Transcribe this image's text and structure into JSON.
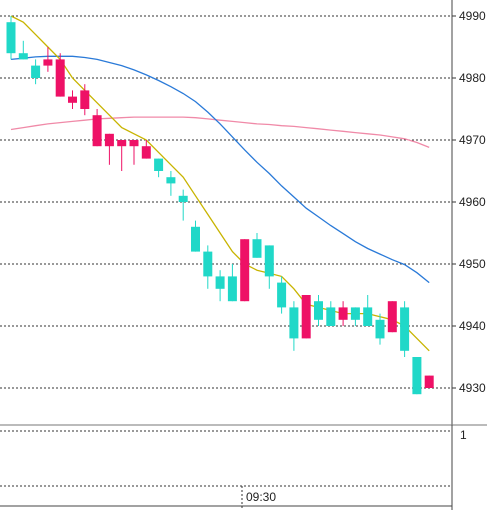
{
  "chart_data": {
    "type": "candlestick",
    "title": "",
    "xlabel": "",
    "ylabel": "",
    "ylim": [
      4925,
      4992
    ],
    "y_ticks": [
      4930,
      4940,
      4950,
      4960,
      4970,
      4980,
      4990
    ],
    "y_tick_labels": [
      "4930",
      "4940",
      "4950",
      "4960",
      "4970",
      "4980",
      "4990"
    ],
    "x_tick_labels": [
      "09:30"
    ],
    "sub_panel": {
      "y_tick_labels": [
        "1"
      ]
    },
    "grid": "horizontal dotted",
    "colors": {
      "up": "#20d8c8",
      "down": "#ee1166",
      "ma_short": "#c8b400",
      "ma_mid": "#2a7ad8",
      "ma_long": "#f08aa8"
    },
    "candles": [
      {
        "o": 4984,
        "h": 4990,
        "l": 4983,
        "c": 4989
      },
      {
        "o": 4983,
        "h": 4986,
        "l": 4983,
        "c": 4984
      },
      {
        "o": 4980,
        "h": 4983,
        "l": 4979,
        "c": 4982
      },
      {
        "o": 4983,
        "h": 4985,
        "l": 4981,
        "c": 4982
      },
      {
        "o": 4983,
        "h": 4984,
        "l": 4977,
        "c": 4977
      },
      {
        "o": 4977,
        "h": 4978,
        "l": 4975,
        "c": 4976
      },
      {
        "o": 4978,
        "h": 4979,
        "l": 4974,
        "c": 4975
      },
      {
        "o": 4974,
        "h": 4975,
        "l": 4969,
        "c": 4969
      },
      {
        "o": 4971,
        "h": 4971,
        "l": 4966,
        "c": 4969
      },
      {
        "o": 4970,
        "h": 4970,
        "l": 4965,
        "c": 4969
      },
      {
        "o": 4970,
        "h": 4970,
        "l": 4966,
        "c": 4969
      },
      {
        "o": 4969,
        "h": 4970,
        "l": 4967,
        "c": 4967
      },
      {
        "o": 4965,
        "h": 4967,
        "l": 4964,
        "c": 4967
      },
      {
        "o": 4963,
        "h": 4965,
        "l": 4961,
        "c": 4964
      },
      {
        "o": 4960,
        "h": 4962,
        "l": 4957,
        "c": 4961
      },
      {
        "o": 4952,
        "h": 4957,
        "l": 4952,
        "c": 4956
      },
      {
        "o": 4948,
        "h": 4953,
        "l": 4946,
        "c": 4952
      },
      {
        "o": 4946,
        "h": 4949,
        "l": 4944,
        "c": 4948
      },
      {
        "o": 4944,
        "h": 4950,
        "l": 4944,
        "c": 4948
      },
      {
        "o": 4954,
        "h": 4954,
        "l": 4944,
        "c": 4944
      },
      {
        "o": 4951,
        "h": 4955,
        "l": 4951,
        "c": 4954
      },
      {
        "o": 4948,
        "h": 4953,
        "l": 4946,
        "c": 4953
      },
      {
        "o": 4943,
        "h": 4948,
        "l": 4942,
        "c": 4947
      },
      {
        "o": 4938,
        "h": 4944,
        "l": 4936,
        "c": 4943
      },
      {
        "o": 4945,
        "h": 4945,
        "l": 4938,
        "c": 4938
      },
      {
        "o": 4941,
        "h": 4945,
        "l": 4940,
        "c": 4944
      },
      {
        "o": 4940,
        "h": 4944,
        "l": 4940,
        "c": 4943
      },
      {
        "o": 4943,
        "h": 4944,
        "l": 4940,
        "c": 4941
      },
      {
        "o": 4941,
        "h": 4943,
        "l": 4940,
        "c": 4943
      },
      {
        "o": 4940,
        "h": 4945,
        "l": 4940,
        "c": 4943
      },
      {
        "o": 4938,
        "h": 4942,
        "l": 4937,
        "c": 4941
      },
      {
        "o": 4944,
        "h": 4944,
        "l": 4939,
        "c": 4939
      },
      {
        "o": 4936,
        "h": 4944,
        "l": 4935,
        "c": 4943
      },
      {
        "o": 4929,
        "h": 4935,
        "l": 4929,
        "c": 4935
      },
      {
        "o": 4932,
        "h": 4932,
        "l": 4930,
        "c": 4930
      }
    ],
    "ma_short": [
      4990,
      4989,
      4987,
      4985,
      4983,
      4980,
      4978,
      4976,
      4974,
      4972,
      4971,
      4970,
      4968,
      4966,
      4964,
      4961,
      4958,
      4955,
      4952,
      4950,
      4949,
      4948.5,
      4948,
      4946,
      4943.5,
      4943,
      4942.5,
      4942,
      4942,
      4942,
      4941.5,
      4941,
      4940,
      4938,
      4936
    ],
    "ma_mid": [
      4983,
      4983.2,
      4983.4,
      4983.5,
      4983.5,
      4983.5,
      4983.3,
      4983,
      4982.5,
      4982,
      4981.3,
      4980.5,
      4979.6,
      4978.6,
      4977.5,
      4976.2,
      4974.5,
      4972.6,
      4970.5,
      4968.4,
      4966.4,
      4964.6,
      4962.6,
      4960.8,
      4959,
      4957.6,
      4956.2,
      4954.9,
      4953.6,
      4952.5,
      4951.6,
      4950.7,
      4949.9,
      4948.6,
      4947
    ],
    "ma_long": [
      4971.7,
      4972,
      4972.3,
      4972.6,
      4972.8,
      4973,
      4973.2,
      4973.4,
      4973.5,
      4973.6,
      4973.7,
      4973.7,
      4973.7,
      4973.7,
      4973.7,
      4973.6,
      4973.4,
      4973.2,
      4973,
      4972.8,
      4972.6,
      4972.5,
      4972.3,
      4972.2,
      4972,
      4971.8,
      4971.6,
      4971.4,
      4971.2,
      4971,
      4970.8,
      4970.5,
      4970.2,
      4969.6,
      4968.8
    ]
  }
}
